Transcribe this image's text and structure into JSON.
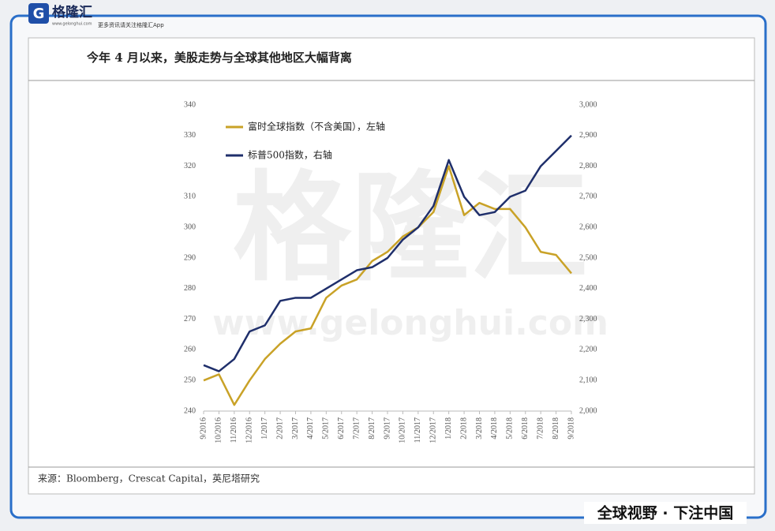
{
  "brand": {
    "name": "格隆汇",
    "site": "www.gelonghui.com",
    "tagline": "更多资讯请关注格隆汇App",
    "slogan": "全球视野 · 下注中国"
  },
  "watermark": {
    "name": "格隆汇",
    "site": "www.gelonghui.com"
  },
  "source": "来源：Bloomberg，Crescat Capital，英尼塔研究",
  "chart_data": {
    "type": "line",
    "title": "今年 4 月以来，美股走势与全球其他地区大幅背离",
    "x": [
      "9/2016",
      "10/2016",
      "11/2016",
      "12/2016",
      "1/2017",
      "2/2017",
      "3/2017",
      "4/2017",
      "5/2017",
      "6/2017",
      "7/2017",
      "8/2017",
      "9/2017",
      "10/2017",
      "11/2017",
      "12/2017",
      "1/2018",
      "2/2018",
      "3/2018",
      "4/2018",
      "5/2018",
      "6/2018",
      "7/2018",
      "8/2018",
      "9/2018"
    ],
    "series": [
      {
        "name": "富时全球指数（不含美国），左轴",
        "color": "#c9a227",
        "axis": "y",
        "values": [
          250,
          252,
          242,
          250,
          257,
          262,
          266,
          267,
          277,
          281,
          283,
          289,
          292,
          297,
          300,
          305,
          320,
          304,
          308,
          306,
          306,
          300,
          292,
          291,
          285
        ]
      },
      {
        "name": "标普500指数，右轴",
        "color": "#1f2f6b",
        "axis": "y2",
        "values": [
          2150,
          2130,
          2170,
          2260,
          2280,
          2360,
          2370,
          2370,
          2400,
          2430,
          2460,
          2470,
          2500,
          2560,
          2600,
          2670,
          2820,
          2700,
          2640,
          2650,
          2700,
          2720,
          2800,
          2850,
          2900
        ]
      }
    ],
    "ylim": [
      240,
      340
    ],
    "yticks": [
      240,
      250,
      260,
      270,
      280,
      290,
      300,
      310,
      320,
      330,
      340
    ],
    "y2lim": [
      2000,
      3000
    ],
    "y2ticks": [
      {
        "value": 2000,
        "label": "2,000"
      },
      {
        "value": 2100,
        "label": "2,100"
      },
      {
        "value": 2200,
        "label": "2,200"
      },
      {
        "value": 2300,
        "label": "2,300"
      },
      {
        "value": 2400,
        "label": "2,400"
      },
      {
        "value": 2500,
        "label": "2,500"
      },
      {
        "value": 2600,
        "label": "2,600"
      },
      {
        "value": 2700,
        "label": "2,700"
      },
      {
        "value": 2800,
        "label": "2,800"
      },
      {
        "value": 2900,
        "label": "2,900"
      },
      {
        "value": 3000,
        "label": "3,000"
      }
    ],
    "legend": "top-left"
  }
}
